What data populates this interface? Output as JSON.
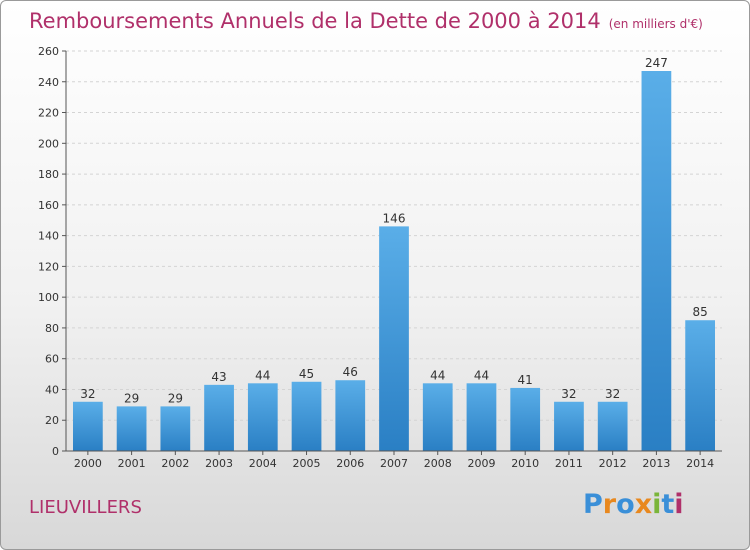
{
  "chart_data": {
    "type": "bar",
    "title": "Remboursements Annuels de la Dette de 2000 à 2014",
    "subtitle": "(en milliers d'€)",
    "categories": [
      "2000",
      "2001",
      "2002",
      "2003",
      "2004",
      "2005",
      "2006",
      "2007",
      "2008",
      "2009",
      "2010",
      "2011",
      "2012",
      "2013",
      "2014"
    ],
    "values": [
      32,
      29,
      29,
      43,
      44,
      45,
      46,
      146,
      44,
      44,
      41,
      32,
      32,
      247,
      85
    ],
    "ylim": [
      0,
      260
    ],
    "yticks": [
      0,
      20,
      40,
      60,
      80,
      100,
      120,
      140,
      160,
      180,
      200,
      220,
      240,
      260
    ],
    "grid": true,
    "bar_color": "#3a8fd8"
  },
  "location": "LIEUVILLERS",
  "logo": {
    "text": "Proxiti",
    "letters": [
      {
        "ch": "P",
        "color": "#3a8fd8"
      },
      {
        "ch": "r",
        "color": "#e8881e"
      },
      {
        "ch": "o",
        "color": "#3a8fd8"
      },
      {
        "ch": "x",
        "color": "#e8881e"
      },
      {
        "ch": "i",
        "color": "#7ab53a"
      },
      {
        "ch": "t",
        "color": "#3a8fd8"
      },
      {
        "ch": "i",
        "color": "#b0306a"
      }
    ]
  }
}
